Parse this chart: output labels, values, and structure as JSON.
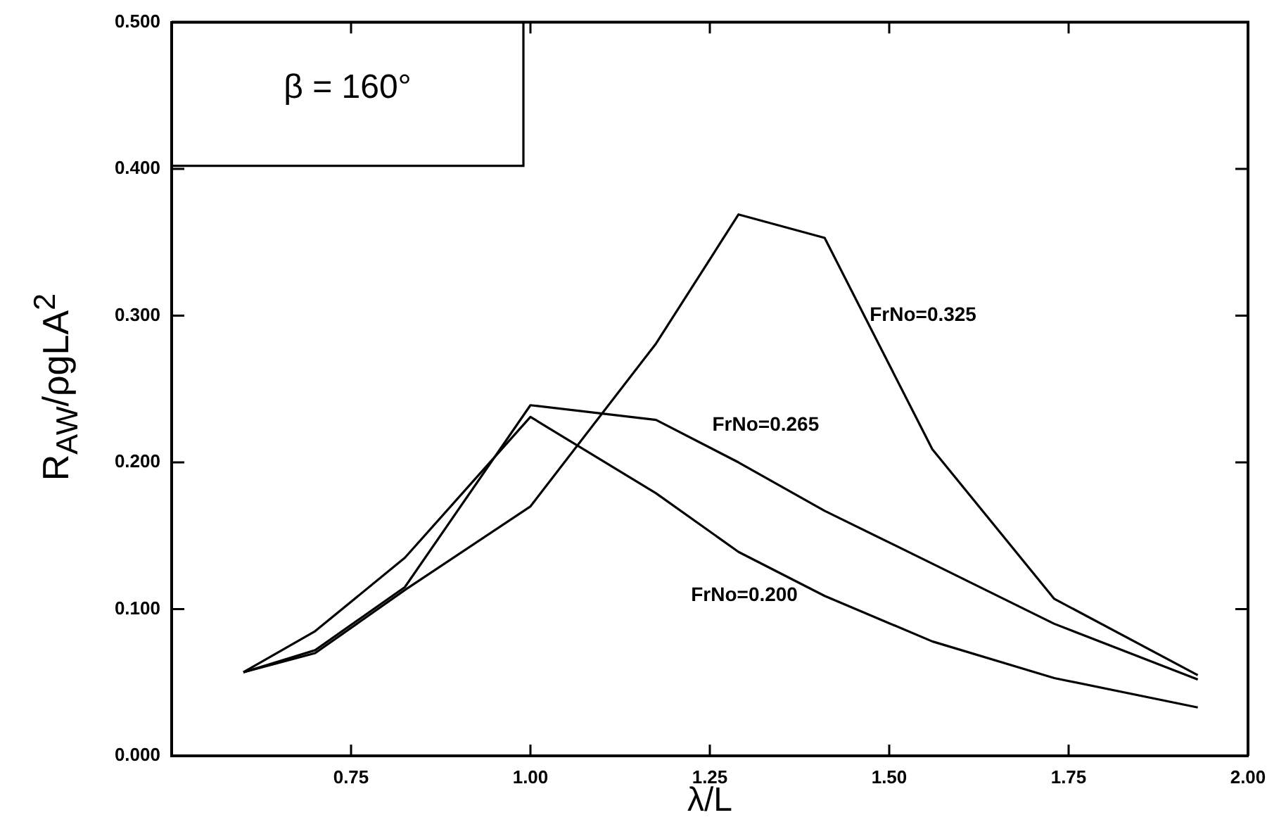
{
  "chart_data": {
    "type": "line",
    "xlabel": "λ/L",
    "ylabel": "R$_{AW}$/ρgLA$^{2}$",
    "annotations": [
      "β = 160°"
    ],
    "series": [
      {
        "name": "FrNo=0.200",
        "color": "#000000",
        "x": [
          0.6,
          0.7,
          0.825,
          1.0,
          1.175,
          1.29,
          1.41,
          1.56,
          1.73,
          1.93
        ],
        "values": [
          0.057,
          0.085,
          0.135,
          0.231,
          0.179,
          0.139,
          0.109,
          0.078,
          0.053,
          0.033
        ]
      },
      {
        "name": "FrNo=0.265",
        "color": "#000000",
        "x": [
          0.6,
          0.7,
          0.825,
          1.0,
          1.175,
          1.29,
          1.41,
          1.56,
          1.73,
          1.93
        ],
        "values": [
          0.057,
          0.072,
          0.115,
          0.239,
          0.229,
          0.2,
          0.167,
          0.131,
          0.09,
          0.052
        ]
      },
      {
        "name": "FrNo=0.325",
        "color": "#000000",
        "x": [
          0.6,
          0.7,
          0.825,
          1.0,
          1.175,
          1.29,
          1.41,
          1.56,
          1.73,
          1.93
        ],
        "values": [
          0.057,
          0.07,
          0.113,
          0.17,
          0.281,
          0.369,
          0.353,
          0.209,
          0.107,
          0.055
        ]
      }
    ],
    "xlim": [
      0.5,
      2.0
    ],
    "xticks": [
      0.75,
      {
        "value": 1,
        "label": "1.00"
      },
      1.25,
      {
        "value": 1.5,
        "label": "1.50"
      },
      1.75,
      {
        "value": 2,
        "label": "2.00"
      }
    ],
    "ylim": [
      0,
      0.5
    ],
    "yticks": [
      {
        "value": 0,
        "label": "0.000"
      },
      {
        "value": 0.1,
        "label": "0.100"
      },
      {
        "value": 0.2,
        "label": "0.200"
      },
      {
        "value": 0.3,
        "label": "0.300"
      },
      {
        "value": 0.4,
        "label": "0.400"
      },
      {
        "value": 0.5,
        "label": "0.500"
      }
    ],
    "grid": false,
    "legend": false,
    "marker": "none",
    "line_style": "solid"
  }
}
